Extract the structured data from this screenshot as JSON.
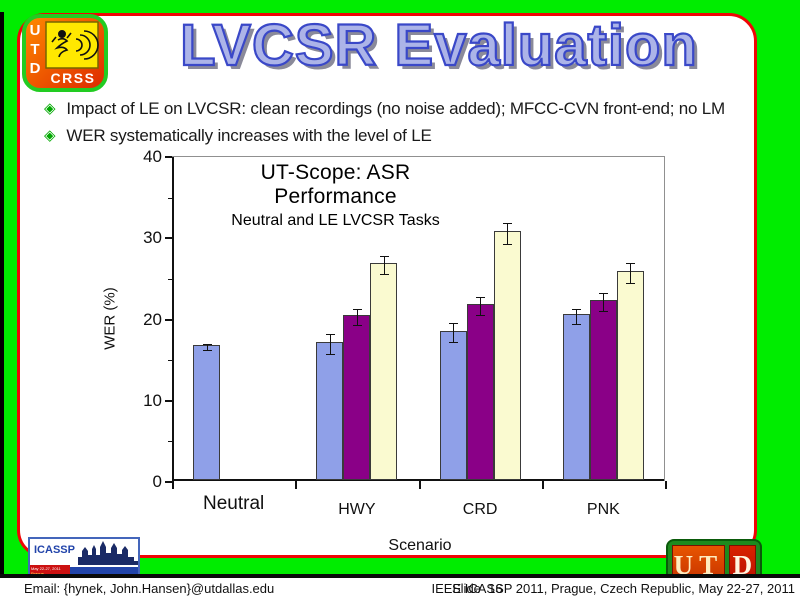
{
  "slide": {
    "title": "LVCSR Evaluation",
    "bullets": [
      "Impact of LE on LVCSR: clean recordings (no noise added); MFCC-CVN front-end; no LM",
      "WER systematically increases with the level of LE"
    ],
    "bullet_marker": "◈",
    "footer": {
      "email": "Email: {hynek, John.Hansen}@utdallas.edu",
      "slide_number": "Slide  16",
      "conference": "IEEE ICASSP 2011, Prague, Czech Republic, May 22-27, 2011"
    }
  },
  "logos": {
    "crss": {
      "u": "U",
      "t": "T",
      "d": "D",
      "crss": "CRSS"
    },
    "icassp": {
      "name": "ICASSP",
      "date": "May 22-27, 2011",
      "city": "Prague",
      "country": "Czech Republic",
      "line1": "2011 International Conference",
      "line2": "on Acoustics, Speech and Signal Processing"
    },
    "utd": {
      "ut": "UT",
      "d": "D"
    }
  },
  "colors": {
    "slide_green": "#00ED00",
    "box_border_red": "#F00505",
    "title_fill": "#ACB4E8",
    "title_outline": "#3A48C8",
    "bullet_green": "#00A800",
    "bar_blue": "#8FA0E8",
    "bar_purple": "#8A0087",
    "bar_yellow": "#FAFAD0"
  },
  "chart_data": {
    "type": "bar",
    "title": "UT-Scope: ASR Performance",
    "subtitle": "Neutral and LE LVCSR Tasks",
    "xlabel": "Scenario",
    "ylabel": "WER (%)",
    "ylim": [
      0,
      40
    ],
    "yticks": [
      0,
      10,
      20,
      30,
      40
    ],
    "yticks_minor": [
      5,
      15,
      25,
      35
    ],
    "grid": false,
    "legend": "none",
    "categories": [
      "Neutral",
      "HWY",
      "CRD",
      "PNK"
    ],
    "series": [
      {
        "name": "series-blue",
        "color": "#8FA0E8",
        "values": [
          16.6,
          17.0,
          18.4,
          20.4
        ],
        "errors": [
          0.4,
          1.2,
          1.2,
          0.9
        ]
      },
      {
        "name": "series-purple",
        "color": "#8A0087",
        "values": [
          null,
          20.3,
          21.7,
          22.2
        ],
        "errors": [
          null,
          1.0,
          1.1,
          1.1
        ]
      },
      {
        "name": "series-yellow",
        "color": "#FAFAD0",
        "values": [
          null,
          26.7,
          30.6,
          25.7
        ],
        "errors": [
          null,
          1.1,
          1.3,
          1.2
        ]
      }
    ]
  }
}
